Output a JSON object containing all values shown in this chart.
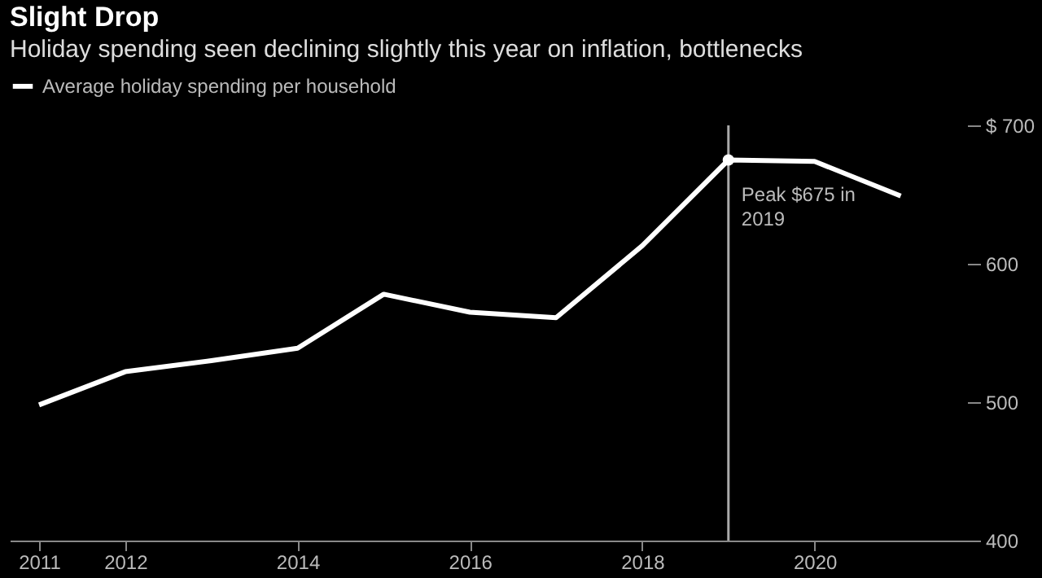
{
  "chart_data": {
    "type": "line",
    "title": "Slight Drop",
    "subtitle": "Holiday spending seen declining slightly this year on inflation, bottlenecks",
    "x": [
      2011,
      2012,
      2013,
      2014,
      2015,
      2016,
      2017,
      2018,
      2019,
      2020,
      2021
    ],
    "series": [
      {
        "name": "Average holiday spending per household",
        "color": "#ffffff",
        "values": [
          498,
          522,
          530,
          539,
          578,
          565,
          561,
          613,
          675,
          674,
          649
        ]
      },
      {
        "type": "scatter",
        "color": "#ffffff",
        "marker": "circle",
        "x": [
          2019
        ],
        "values": [
          675
        ]
      }
    ],
    "xlim": [
      2010.66,
      2021.77
    ],
    "xticks": [
      2011,
      2012,
      2014,
      2016,
      2018,
      2020
    ],
    "ylim": [
      400,
      700
    ],
    "yticks": [
      {
        "value": 700,
        "label": "$ 700"
      },
      600,
      500,
      400
    ],
    "ref_lines": [
      {
        "axis": "x",
        "value": 2019,
        "color": "#aaaaaa"
      }
    ],
    "annotations": [
      {
        "text": "Peak $675 in 2019",
        "x": 2019,
        "y": 675
      }
    ],
    "legend": "top left",
    "grid": false,
    "marker": "none",
    "line_style": "solid"
  }
}
